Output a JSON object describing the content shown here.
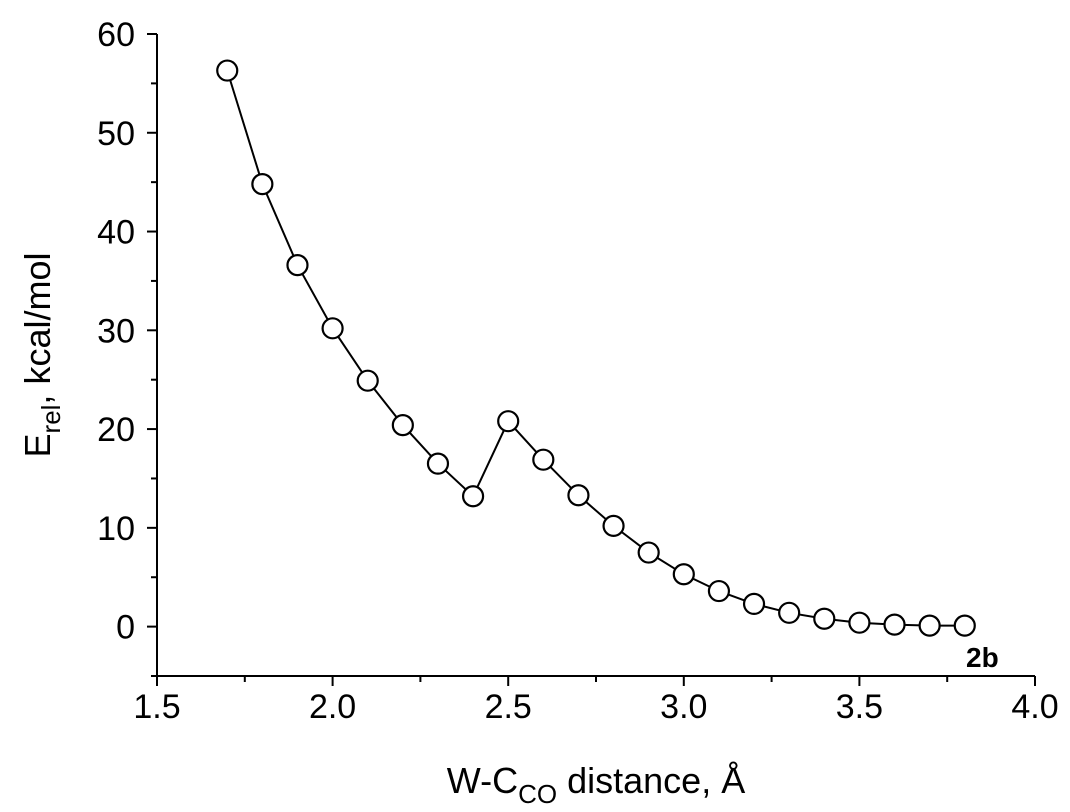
{
  "chart_data": {
    "type": "line",
    "x": [
      1.7,
      1.8,
      1.9,
      2.0,
      2.1,
      2.2,
      2.3,
      2.4,
      2.5,
      2.6,
      2.7,
      2.8,
      2.9,
      3.0,
      3.1,
      3.2,
      3.3,
      3.4,
      3.5,
      3.6,
      3.7,
      3.8
    ],
    "series": [
      {
        "values": [
          56.3,
          44.8,
          36.6,
          30.2,
          24.9,
          20.4,
          16.5,
          13.2,
          20.8,
          16.9,
          13.3,
          10.2,
          7.5,
          5.3,
          3.6,
          2.3,
          1.4,
          0.8,
          0.4,
          0.2,
          0.1,
          0.1
        ]
      }
    ],
    "xlabel": {
      "main": "W-C",
      "sub": "CO",
      "rest": " distance, Å"
    },
    "ylabel": {
      "main": "E",
      "sub": "rel",
      "rest": ", kcal/mol"
    },
    "xlim": [
      1.5,
      4.0
    ],
    "ylim": [
      -5,
      60
    ],
    "xticks": [
      "1.5",
      "2.0",
      "2.5",
      "3.0",
      "3.5",
      "4.0"
    ],
    "yticks": [
      "0",
      "10",
      "20",
      "30",
      "40",
      "50",
      "60"
    ],
    "annotation": "2b",
    "grid": false,
    "marker": "open-circle",
    "line_color": "#000000"
  }
}
